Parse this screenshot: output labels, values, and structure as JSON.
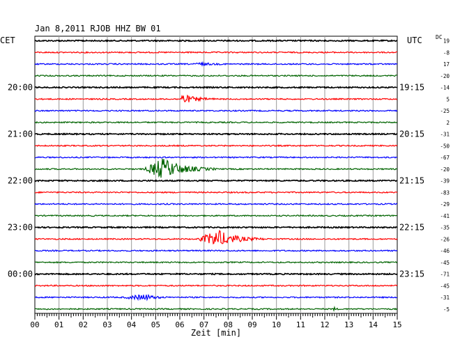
{
  "header": {
    "title": "Jan 8,2011   RJOB HHZ BW 01",
    "left_label": "CET",
    "right_label": "UTC",
    "dc_label": "DC"
  },
  "chart_data": {
    "type": "line",
    "xlabel": "Zeit [min]",
    "x_ticks": [
      "00",
      "01",
      "02",
      "03",
      "04",
      "05",
      "06",
      "07",
      "08",
      "09",
      "10",
      "11",
      "12",
      "13",
      "14",
      "15"
    ],
    "xlim": [
      0,
      15
    ],
    "grid": true,
    "rows_per_hour": 4,
    "row_colors": [
      "#000000",
      "#ff0000",
      "#0000ff",
      "#006400"
    ],
    "dc_offsets": [
      "19",
      "-8",
      "17",
      "-20",
      "-14",
      "5",
      "-25",
      "2",
      "-31",
      "-50",
      "-67",
      "-20",
      "-39",
      "-83",
      "-29",
      "-41",
      "-35",
      "-26",
      "-46",
      "-45",
      "-71",
      "-45",
      "-31",
      "-5"
    ],
    "time_labels_cet": [
      {
        "row": 4,
        "label": "20:00"
      },
      {
        "row": 8,
        "label": "21:00"
      },
      {
        "row": 12,
        "label": "22:00"
      },
      {
        "row": 16,
        "label": "23:00"
      },
      {
        "row": 20,
        "label": "00:00"
      }
    ],
    "time_labels_utc": [
      {
        "row": 4,
        "label": "19:15"
      },
      {
        "row": 8,
        "label": "20:15"
      },
      {
        "row": 12,
        "label": "21:15"
      },
      {
        "row": 16,
        "label": "22:15"
      },
      {
        "row": 20,
        "label": "23:15"
      }
    ],
    "events": [
      {
        "row": 2,
        "start_min": 6.6,
        "peak_min": 6.8,
        "end_min": 8.0,
        "amplitude": 2
      },
      {
        "row": 5,
        "start_min": 6.0,
        "peak_min": 6.1,
        "end_min": 7.5,
        "amplitude": 7
      },
      {
        "row": 11,
        "start_min": 4.5,
        "peak_min": 5.3,
        "end_min": 7.5,
        "amplitude": 15
      },
      {
        "row": 17,
        "start_min": 6.7,
        "peak_min": 7.6,
        "end_min": 9.5,
        "amplitude": 12
      },
      {
        "row": 22,
        "start_min": 3.6,
        "peak_min": 4.6,
        "end_min": 5.5,
        "amplitude": 4
      },
      {
        "row": 23,
        "start_min": 12.3,
        "peak_min": 12.4,
        "end_min": 12.6,
        "amplitude": 2
      }
    ]
  }
}
